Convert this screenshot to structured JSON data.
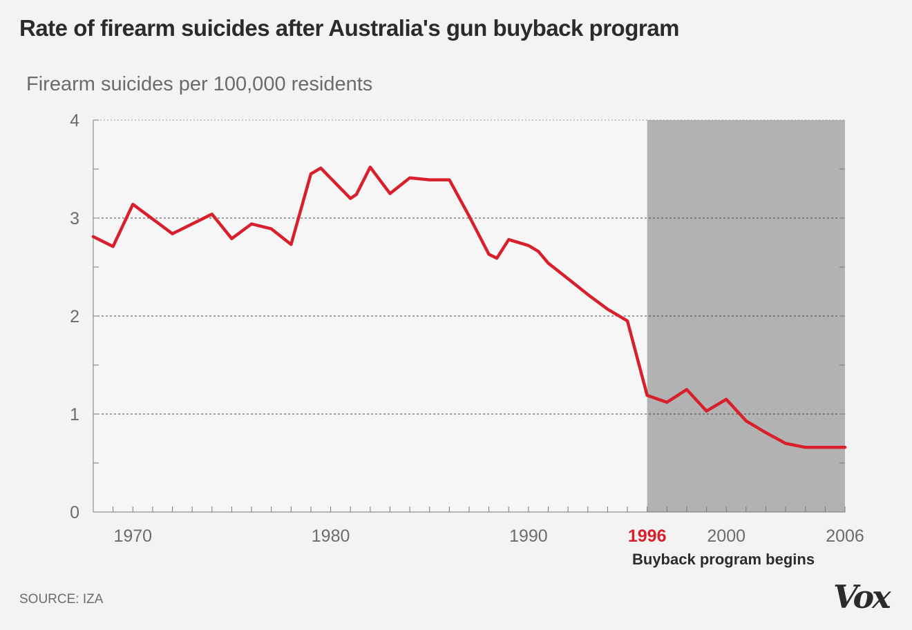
{
  "title": "Rate of firearm suicides after Australia's gun buyback program",
  "source": "SOURCE: IZA",
  "logo": "Vox",
  "colors": {
    "line": "#d7202b",
    "shade": "#b3b2b2",
    "background": "#f4f3f3"
  },
  "chart_data": {
    "type": "line",
    "ylabel": "Firearm suicides per 100,000 residents",
    "xlim": [
      1968,
      2006
    ],
    "ylim": [
      0,
      4
    ],
    "y_ticks": [
      0,
      1,
      2,
      3,
      4
    ],
    "x_ticks": [
      1970,
      1980,
      1990,
      2000,
      2006
    ],
    "grid": "horizontal dashed",
    "highlight": {
      "from": 1996,
      "to": 2006,
      "year_label": "1996",
      "note": "Buyback program begins"
    },
    "series": [
      {
        "x": [
          1968,
          1969,
          1970,
          1972,
          1974,
          1975,
          1976,
          1977,
          1978,
          1979,
          1979.5,
          1981,
          1981.3,
          1982,
          1983,
          1984,
          1985,
          1986,
          1987,
          1988,
          1988.4,
          1989,
          1990,
          1990.5,
          1991,
          1992,
          1993,
          1994,
          1995,
          1996,
          1997,
          1998,
          1999,
          2000,
          2001,
          2002,
          2003,
          2004,
          2005,
          2006
        ],
        "y": [
          2.81,
          2.71,
          3.14,
          2.84,
          3.04,
          2.79,
          2.94,
          2.89,
          2.73,
          3.45,
          3.51,
          3.2,
          3.24,
          3.52,
          3.25,
          3.41,
          3.39,
          3.39,
          3.02,
          2.63,
          2.59,
          2.78,
          2.72,
          2.66,
          2.54,
          2.38,
          2.22,
          2.07,
          1.95,
          1.19,
          1.12,
          1.25,
          1.03,
          1.15,
          0.93,
          0.81,
          0.7,
          0.66,
          0.66,
          0.66
        ]
      }
    ]
  }
}
